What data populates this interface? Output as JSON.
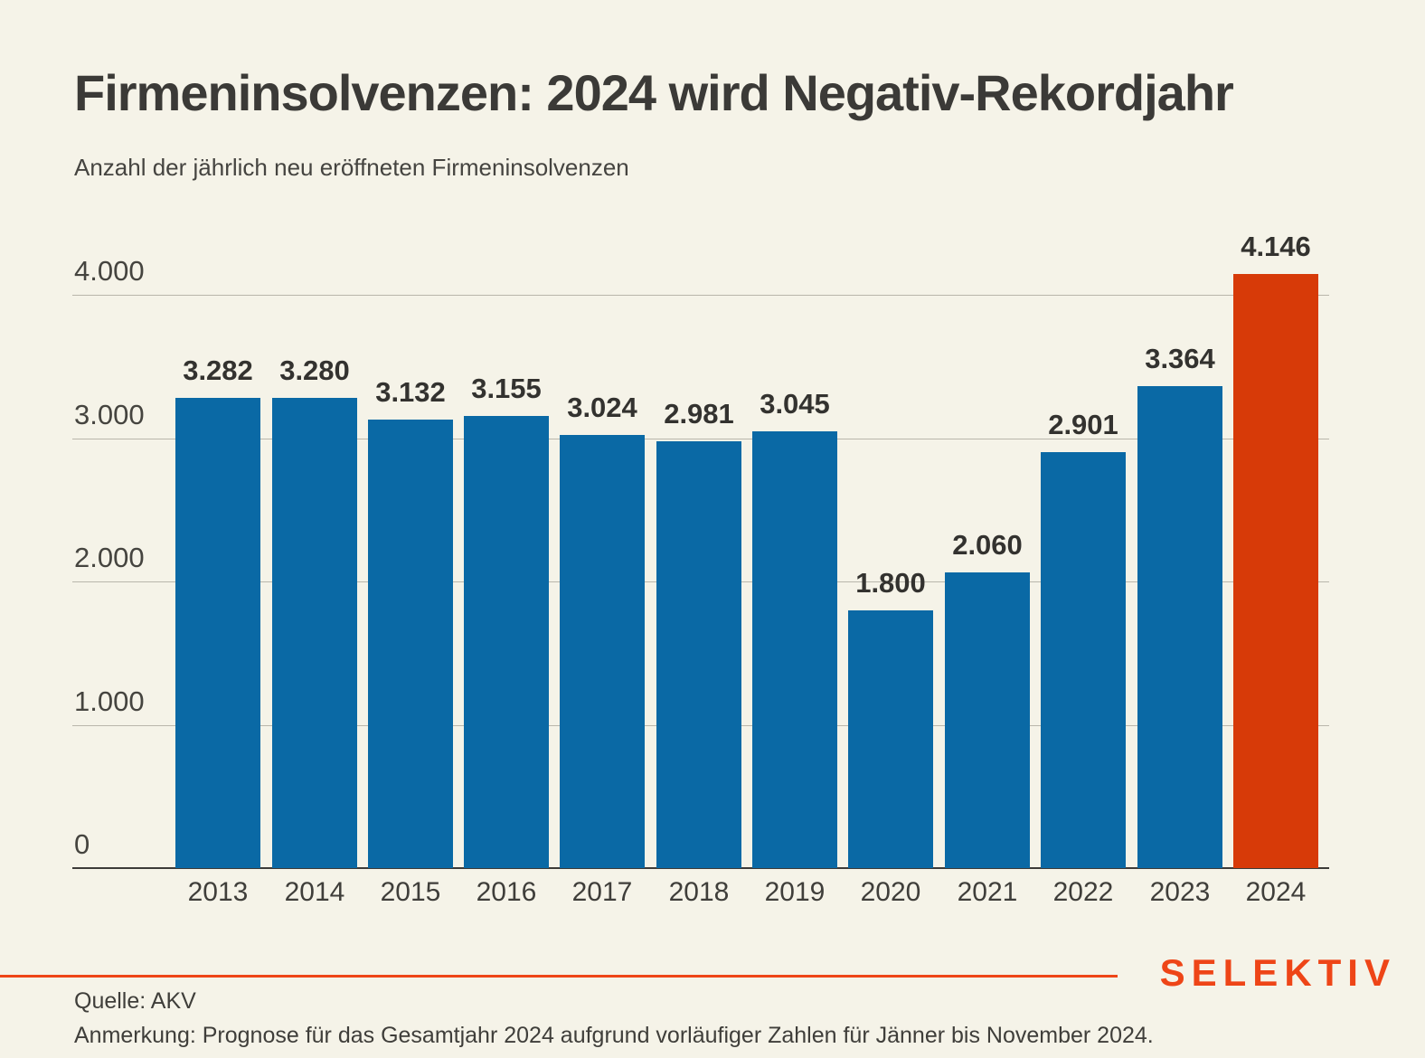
{
  "header": {
    "title": "Firmeninsolvenzen: 2024 wird Negativ-Rekordjahr",
    "subtitle": "Anzahl der jährlich neu eröffneten Firmeninsolvenzen"
  },
  "chart_data": {
    "type": "bar",
    "title": "Firmeninsolvenzen: 2024 wird Negativ-Rekordjahr",
    "subtitle": "Anzahl der jährlich neu eröffneten Firmeninsolvenzen",
    "categories": [
      "2013",
      "2014",
      "2015",
      "2016",
      "2017",
      "2018",
      "2019",
      "2020",
      "2021",
      "2022",
      "2023",
      "2024"
    ],
    "values": [
      3282,
      3280,
      3132,
      3155,
      3024,
      2981,
      3045,
      1800,
      2060,
      2901,
      3364,
      4146
    ],
    "value_labels": [
      "3.282",
      "3.280",
      "3.132",
      "3.155",
      "3.024",
      "2.981",
      "3.045",
      "1.800",
      "2.060",
      "2.901",
      "3.364",
      "4.146"
    ],
    "highlight_category": "2024",
    "bar_color": "#0a69a5",
    "highlight_color": "#d73a08",
    "y_ticks": [
      {
        "value": 0,
        "label": "0"
      },
      {
        "value": 1000,
        "label": "1.000"
      },
      {
        "value": 2000,
        "label": "2.000"
      },
      {
        "value": 3000,
        "label": "3.000"
      },
      {
        "value": 4000,
        "label": "4.000"
      }
    ],
    "ylim": [
      0,
      4400
    ],
    "xlabel": "",
    "ylabel": "",
    "grid": true,
    "legend": false
  },
  "footer": {
    "source": "Quelle: AKV",
    "note": "Anmerkung: Prognose für das Gesamtjahr 2024 aufgrund vorläufiger Zahlen für Jänner bis November 2024.",
    "logo": "SELEKTIV",
    "accent_color": "#ee4517"
  }
}
